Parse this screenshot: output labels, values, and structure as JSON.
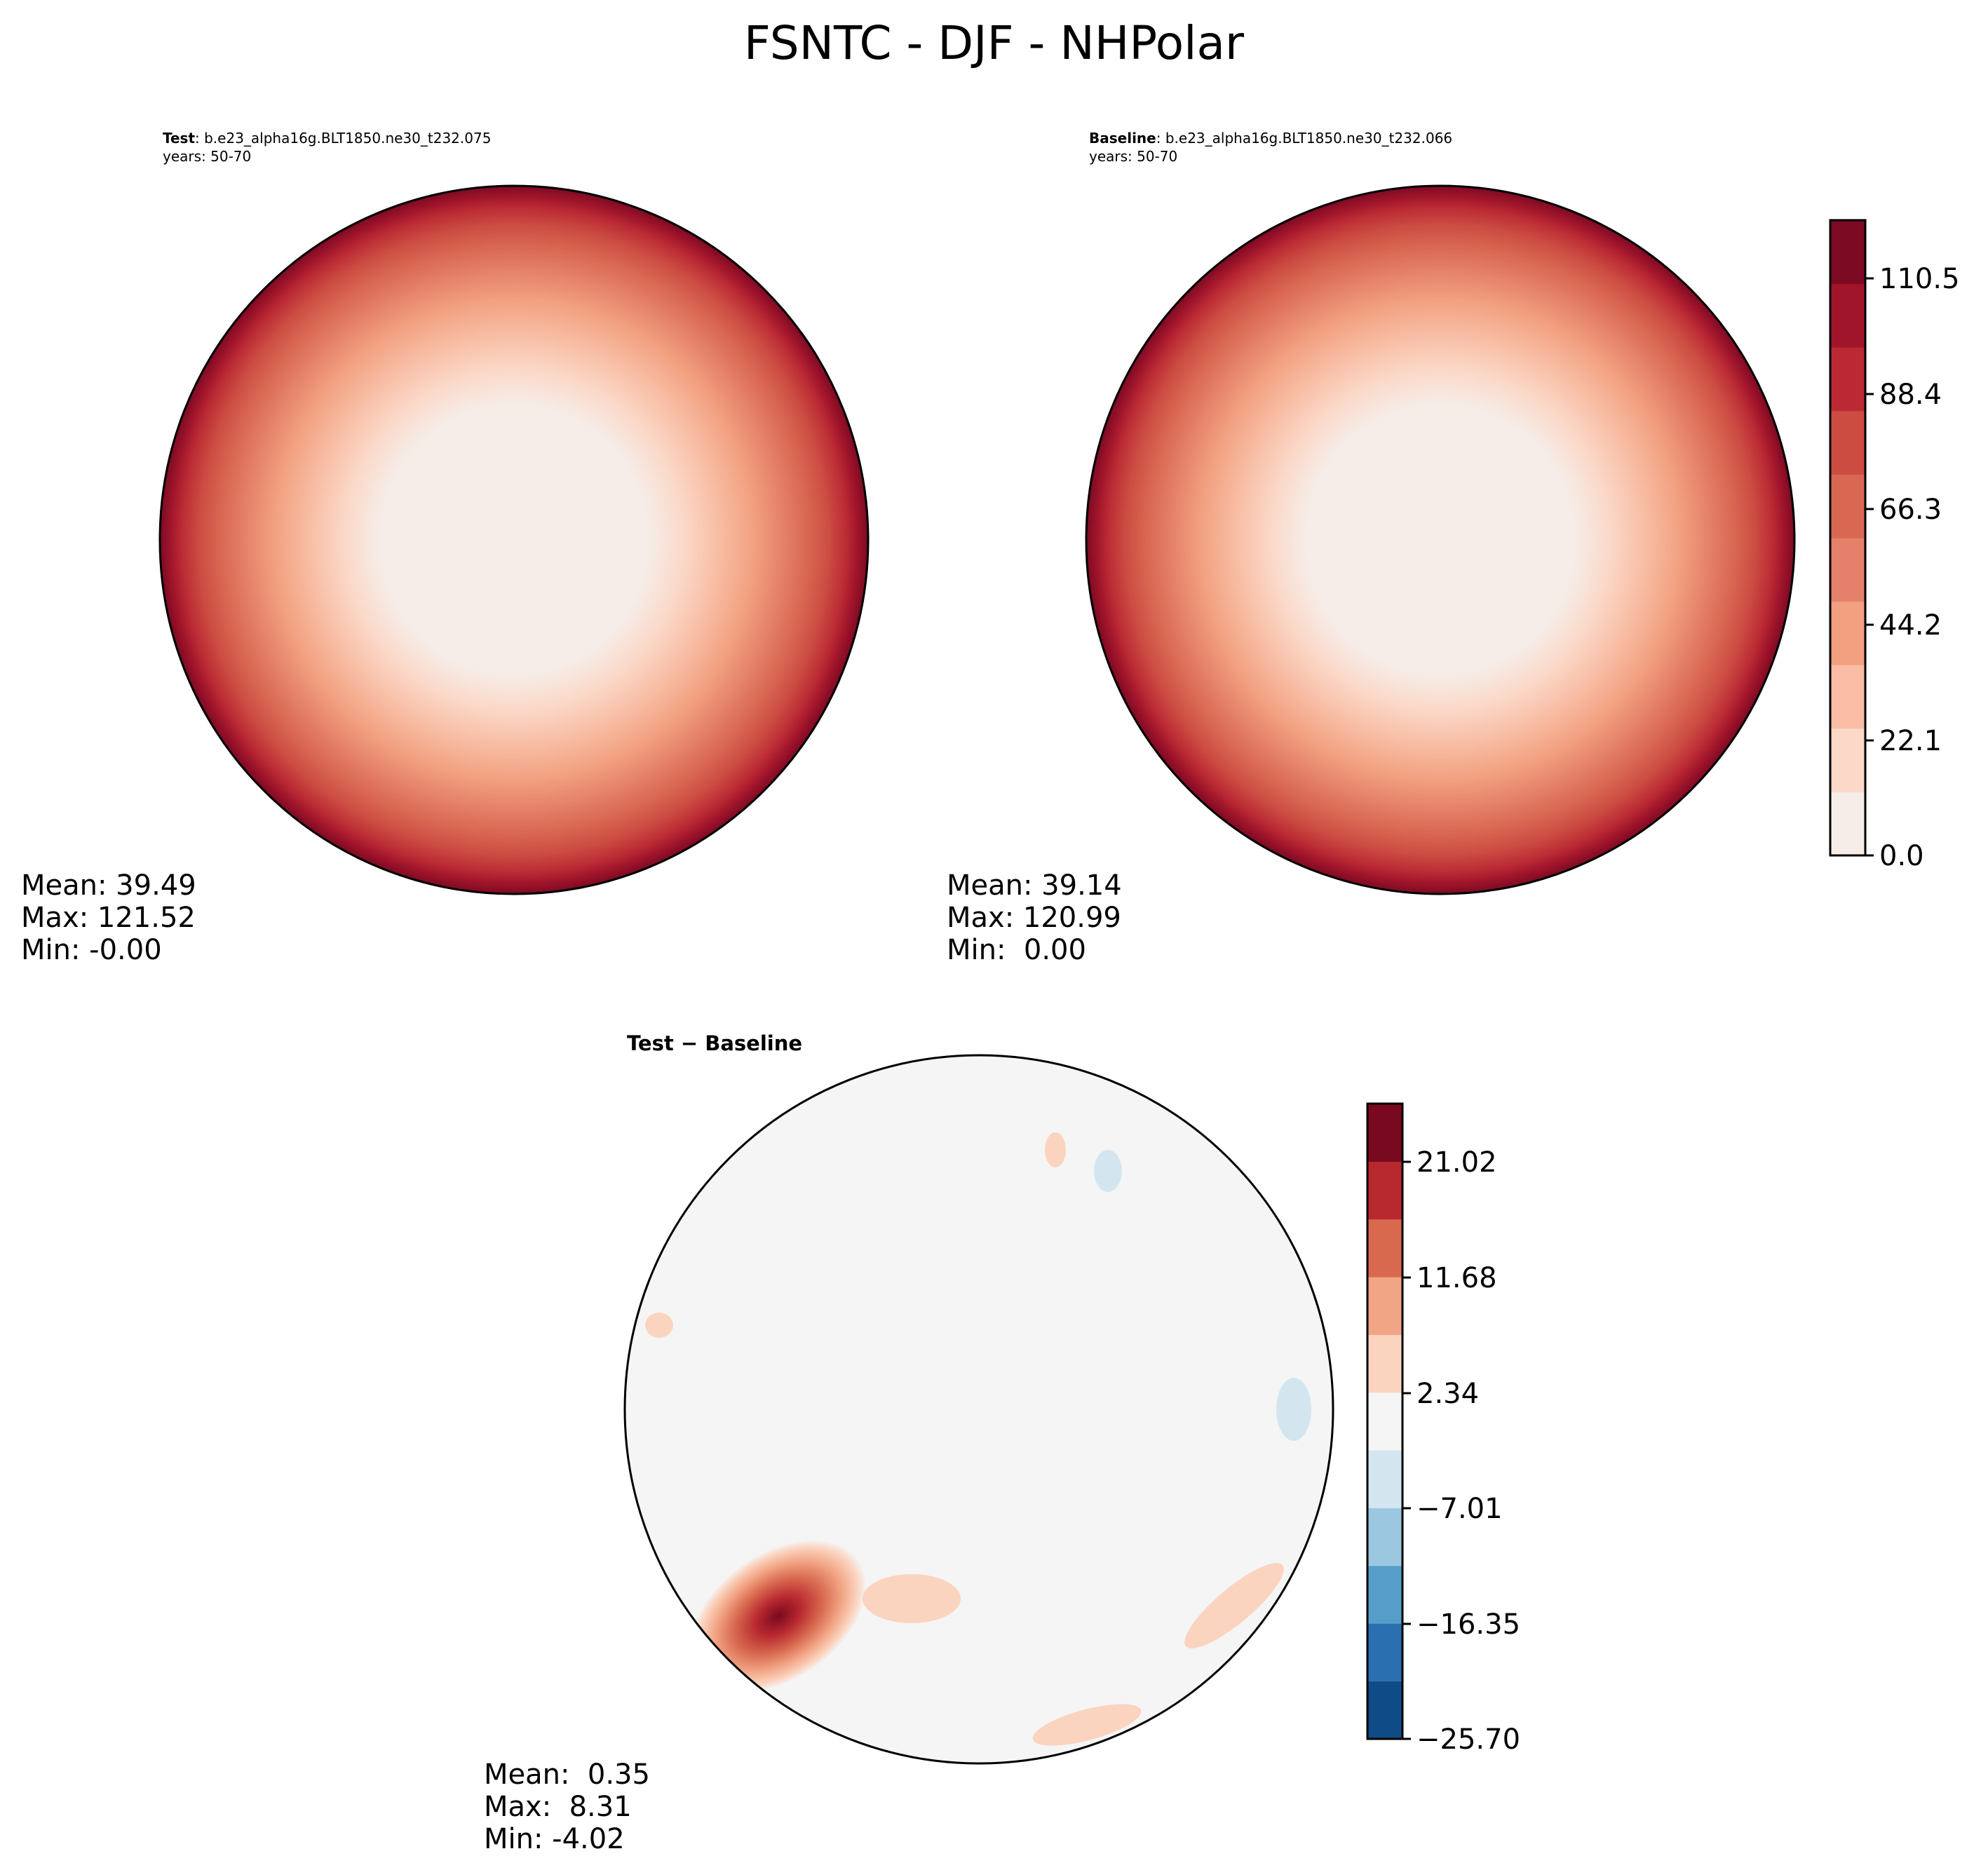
{
  "figure": {
    "title": "FSNTC - DJF - NHPolar"
  },
  "panels": {
    "test": {
      "label": "Test",
      "case": ": b.e23_alpha16g.BLT1850.ne30_t232.075",
      "years": "years: 50-70",
      "mean": "Mean: 39.49",
      "max": "Max: 121.52",
      "min": "Min: -0.00"
    },
    "baseline": {
      "label": "Baseline",
      "case": ": b.e23_alpha16g.BLT1850.ne30_t232.066",
      "years": "years: 50-70",
      "mean": "Mean: 39.14",
      "max": "Max: 120.99",
      "min": "Min:  0.00"
    },
    "difference": {
      "title": "Test − Baseline",
      "mean": "Mean:  0.35",
      "max": "Max:  8.31",
      "min": "Min: -4.02"
    }
  },
  "colorbars": {
    "main": {
      "ticks": [
        "0.0",
        "22.1",
        "44.2",
        "66.3",
        "88.4",
        "110.5"
      ],
      "colors": [
        "#f6ede8",
        "#fbd8c8",
        "#f8bda4",
        "#f2a07f",
        "#e5816a",
        "#d96752",
        "#cc4c42",
        "#bb2a34",
        "#a1152b",
        "#7c0a23"
      ]
    },
    "diff": {
      "ticks": [
        "−25.70",
        "−16.35",
        "−7.01",
        "2.34",
        "11.68",
        "21.02"
      ],
      "colors": [
        "#0f4b87",
        "#2a6fb0",
        "#569ec9",
        "#9bc8e0",
        "#d3e6f0",
        "#f5f5f5",
        "#fbd4c0",
        "#f2a585",
        "#d8694f",
        "#b8282f",
        "#78091f"
      ]
    }
  },
  "chart_data": [
    {
      "type": "heatmap",
      "name": "Test",
      "projection": "north-polar-stereographic",
      "title": "Test",
      "pattern": "radial gradient from near 0 at the pole to ~120 at the outer edge",
      "mean": 39.49,
      "max": 121.52,
      "min": -0.0,
      "colorbar_range": [
        0.0,
        121.52
      ]
    },
    {
      "type": "heatmap",
      "name": "Baseline",
      "projection": "north-polar-stereographic",
      "title": "Baseline",
      "pattern": "radial gradient from near 0 at the pole to ~120 at the outer edge",
      "mean": 39.14,
      "max": 120.99,
      "min": 0.0,
      "colorbar_range": [
        0.0,
        121.52
      ]
    },
    {
      "type": "heatmap",
      "name": "Test − Baseline",
      "projection": "north-polar-stereographic",
      "title": "Test − Baseline",
      "pattern": "mostly near zero; strong positive anomaly over eastern Canada / Hudson Bay region",
      "mean": 0.35,
      "max": 8.31,
      "min": -4.02,
      "colorbar_range": [
        -25.7,
        25.7
      ]
    }
  ]
}
